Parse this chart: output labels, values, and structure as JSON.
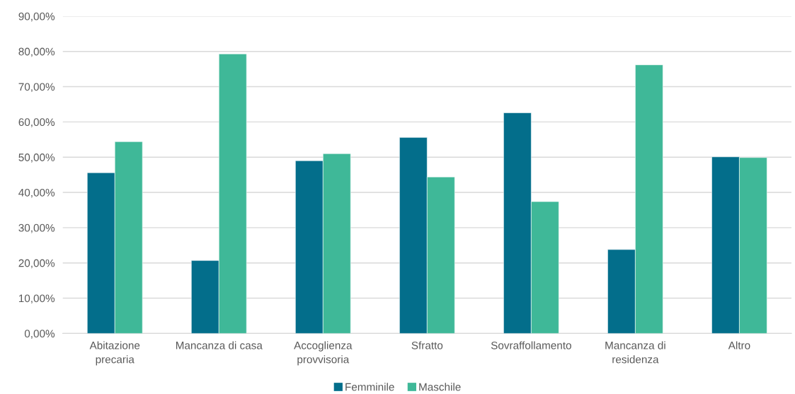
{
  "chart_data": {
    "type": "bar",
    "categories": [
      "Abitazione\nprecaria",
      "Mancanza di casa",
      "Accoglienza\nprovvisoria",
      "Sfratto",
      "Sovraffollamento",
      "Mancanza di\nresidenza",
      "Altro"
    ],
    "series": [
      {
        "name": "Femminile",
        "color": "#036e8b",
        "values": [
          45.6,
          20.7,
          49.0,
          55.6,
          62.6,
          23.8,
          50.1
        ]
      },
      {
        "name": "Maschile",
        "color": "#3fb898",
        "values": [
          54.4,
          79.3,
          51.0,
          44.4,
          37.4,
          76.2,
          49.9
        ]
      }
    ],
    "ylim": [
      0,
      90
    ],
    "yticks": [
      {
        "value": 0,
        "label": "0,00%"
      },
      {
        "value": 10,
        "label": "10,00%"
      },
      {
        "value": 20,
        "label": "20,00%"
      },
      {
        "value": 30,
        "label": "30,00%"
      },
      {
        "value": 40,
        "label": "40,00%"
      },
      {
        "value": 50,
        "label": "50,00%"
      },
      {
        "value": 60,
        "label": "60,00%"
      },
      {
        "value": 70,
        "label": "70,00%"
      },
      {
        "value": 80,
        "label": "80,00%"
      },
      {
        "value": 90,
        "label": "90,00%"
      }
    ],
    "grid": "y",
    "legend": "bottom"
  }
}
